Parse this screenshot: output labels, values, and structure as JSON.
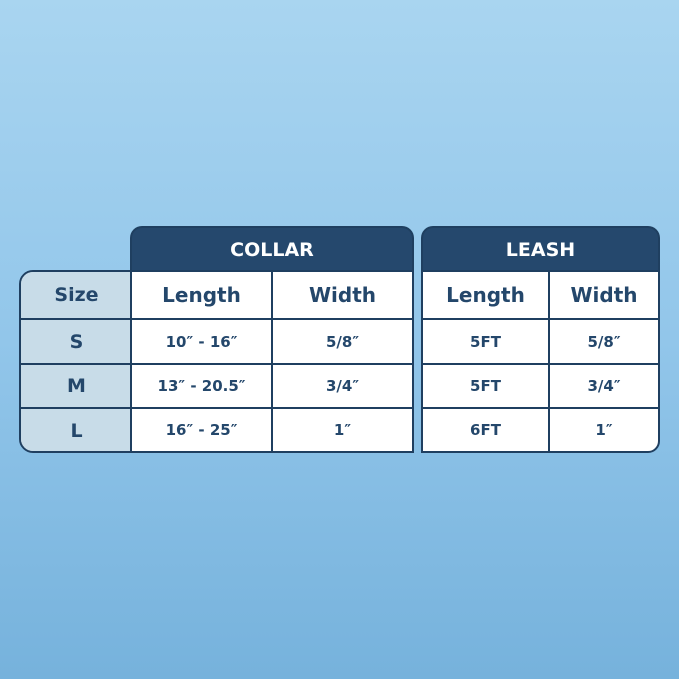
{
  "size_column": {
    "header": "Size",
    "rows": [
      "S",
      "M",
      "L"
    ]
  },
  "collar": {
    "title": "COLLAR",
    "columns": [
      "Length",
      "Width"
    ],
    "rows": [
      [
        "10″ - 16″",
        "5/8″"
      ],
      [
        "13″ - 20.5″",
        "3/4″"
      ],
      [
        "16″ - 25″",
        "1″"
      ]
    ]
  },
  "leash": {
    "title": "LEASH",
    "columns": [
      "Length",
      "Width"
    ],
    "rows": [
      [
        "5FT",
        "5/8″"
      ],
      [
        "5FT",
        "3/4″"
      ],
      [
        "6FT",
        "1″"
      ]
    ]
  },
  "colors": {
    "navy": "#25486d",
    "size_column": "#c8dce8",
    "background": "#92c6ea"
  }
}
